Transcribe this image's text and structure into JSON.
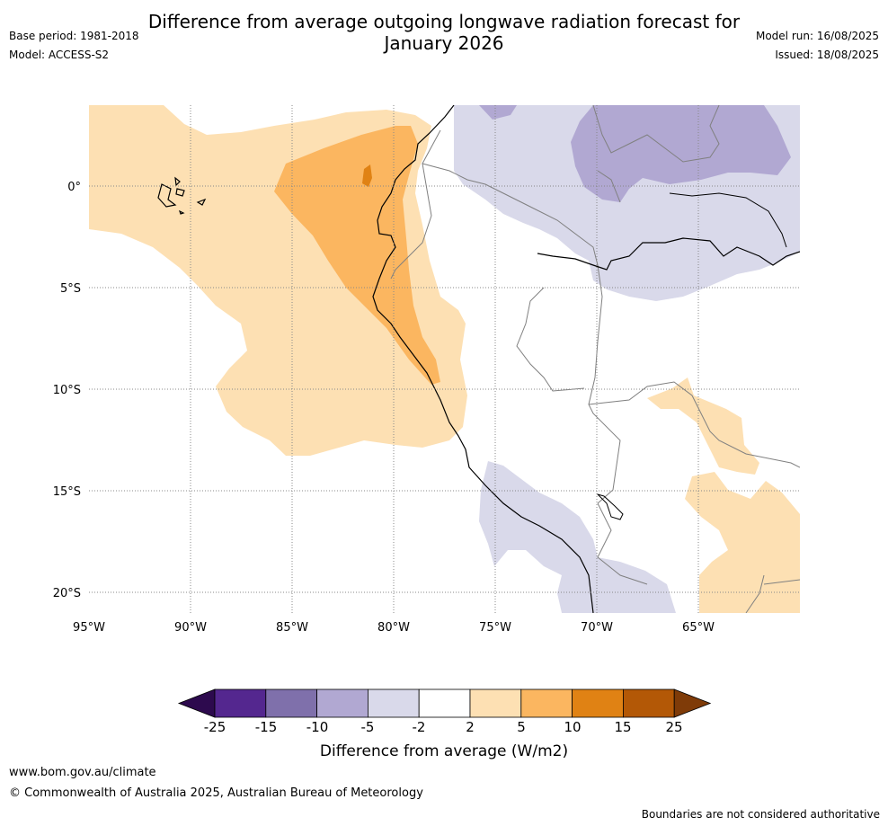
{
  "title": {
    "line1": "Difference from average outgoing longwave radiation forecast for",
    "line2": "January 2026"
  },
  "meta_left": {
    "base_period": "Base period: 1981-2018",
    "model": "Model: ACCESS-S2"
  },
  "meta_right": {
    "model_run": "Model run: 16/08/2025",
    "issued": "Issued: 18/08/2025"
  },
  "map": {
    "lon_range": [
      -95,
      -60
    ],
    "lat_range": [
      -21,
      4
    ],
    "lat_labels": [
      "0°",
      "5°S",
      "10°S",
      "15°S",
      "20°S"
    ],
    "lon_labels": [
      "95°W",
      "90°W",
      "85°W",
      "80°W",
      "75°W",
      "70°W",
      "65°W"
    ],
    "grid": true
  },
  "colorbar": {
    "title": "Difference from average (W/m2)",
    "ticks": [
      "-25",
      "-15",
      "-10",
      "-5",
      "-2",
      "2",
      "5",
      "10",
      "15",
      "25"
    ],
    "colors": [
      "#2d0a4e",
      "#54278f",
      "#7f70ab",
      "#b1a8d2",
      "#d9d9ea",
      "#ffffff",
      "#fde0b3",
      "#fbb660",
      "#e08214",
      "#b35806",
      "#7f3b08"
    ]
  },
  "footer": {
    "link": "www.bom.gov.au/climate",
    "copyright": "© Commonwealth of Australia 2025, Australian Bureau of Meteorology",
    "note": "Boundaries are not considered authoritative"
  }
}
